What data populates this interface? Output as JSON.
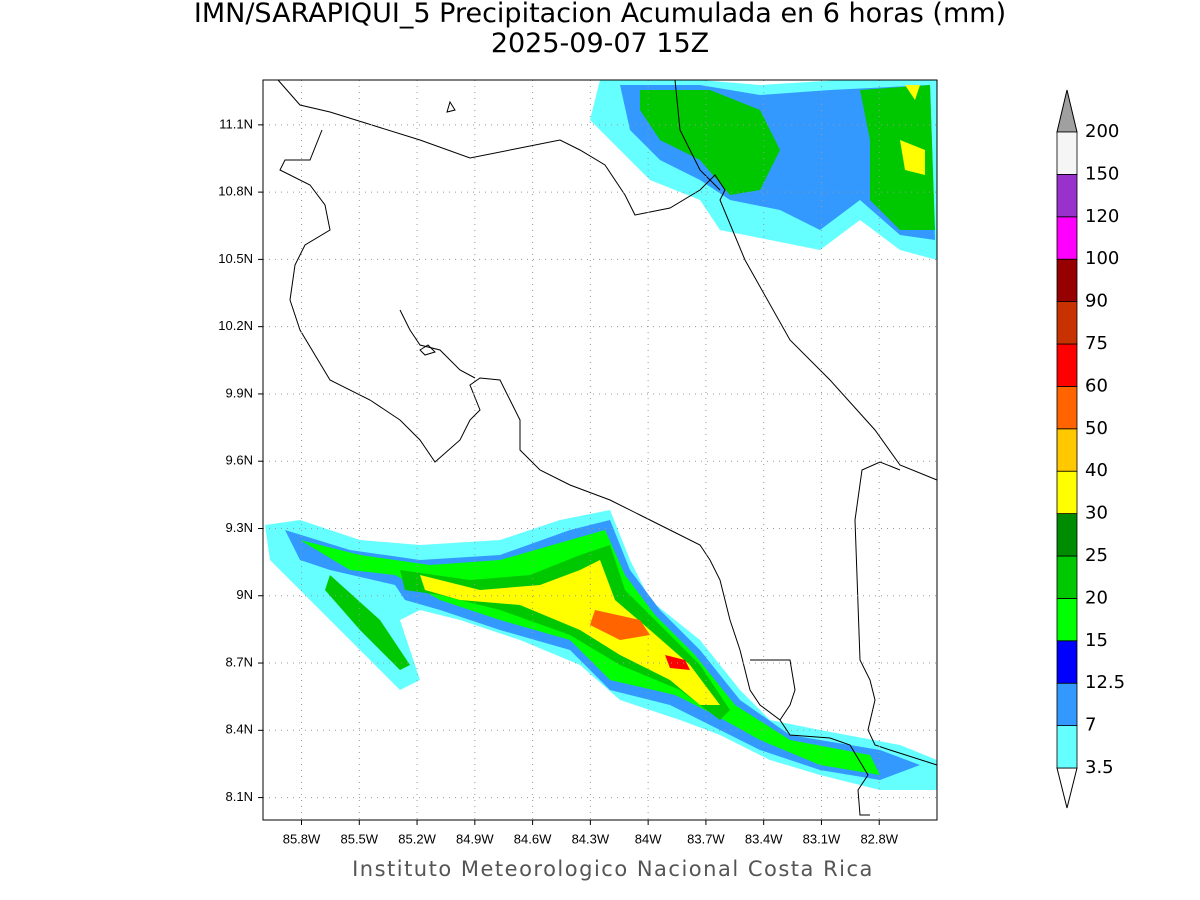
{
  "title": "IMN/SARAPIQUI_5 Precipitacion Acumulada en 6 horas (mm)",
  "subtitle": "2025-09-07 15Z",
  "footer": "Instituto Meteorologico Nacional Costa Rica",
  "map": {
    "xlim": [
      -86.0,
      -82.5
    ],
    "ylim": [
      8.0,
      11.3
    ],
    "xticks": [
      {
        "value": -85.8,
        "label": "85.8W"
      },
      {
        "value": -85.5,
        "label": "85.5W"
      },
      {
        "value": -85.2,
        "label": "85.2W"
      },
      {
        "value": -84.9,
        "label": "84.9W"
      },
      {
        "value": -84.6,
        "label": "84.6W"
      },
      {
        "value": -84.3,
        "label": "84.3W"
      },
      {
        "value": -84.0,
        "label": "84W"
      },
      {
        "value": -83.7,
        "label": "83.7W"
      },
      {
        "value": -83.4,
        "label": "83.4W"
      },
      {
        "value": -83.1,
        "label": "83.1W"
      },
      {
        "value": -82.8,
        "label": "82.8W"
      }
    ],
    "yticks": [
      {
        "value": 11.1,
        "label": "11.1N"
      },
      {
        "value": 10.8,
        "label": "10.8N"
      },
      {
        "value": 10.5,
        "label": "10.5N"
      },
      {
        "value": 10.2,
        "label": "10.2N"
      },
      {
        "value": 9.9,
        "label": "9.9N"
      },
      {
        "value": 9.6,
        "label": "9.6N"
      },
      {
        "value": 9.3,
        "label": "9.3N"
      },
      {
        "value": 9.0,
        "label": "9N"
      },
      {
        "value": 8.7,
        "label": "8.7N"
      },
      {
        "value": 8.4,
        "label": "8.4N"
      },
      {
        "value": 8.1,
        "label": "8.1N"
      }
    ],
    "grid": true
  },
  "colorbar": {
    "levels": [
      3.5,
      7,
      12.5,
      15,
      20,
      25,
      30,
      40,
      50,
      60,
      75,
      90,
      100,
      120,
      150,
      200
    ],
    "colors": [
      "#66ffff",
      "#3399ff",
      "#0000ff",
      "#00ff00",
      "#00c800",
      "#008c00",
      "#ffff00",
      "#ffc800",
      "#ff6400",
      "#ff0000",
      "#c83200",
      "#960000",
      "#ff00ff",
      "#9932cc",
      "#f5f5f5"
    ],
    "under_color": "#ffffff",
    "over_color": "#a0a0a0"
  }
}
